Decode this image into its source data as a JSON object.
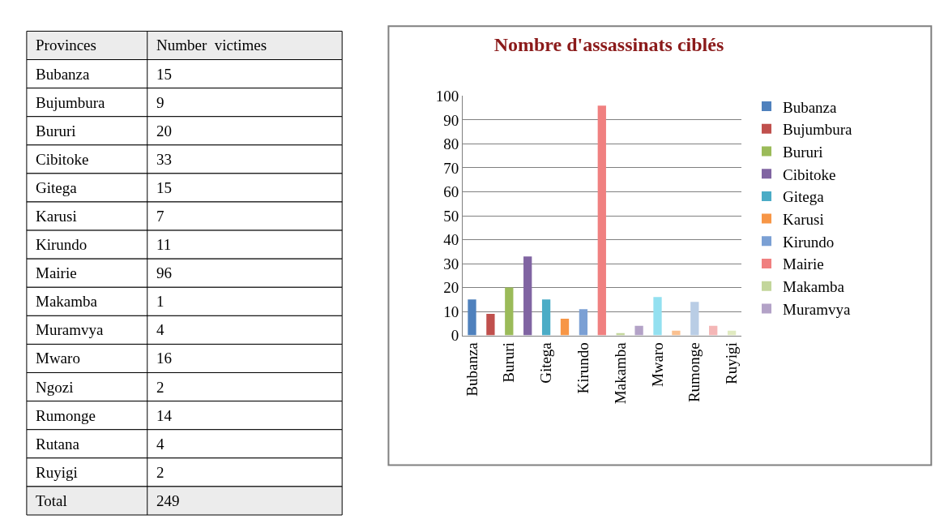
{
  "chart_data": [
    {
      "type": "other",
      "annotations": [
        "Provinces",
        "Number  victimes",
        "Bubanza",
        "15",
        "Bujumbura",
        "9",
        "Bururi",
        "20",
        "Cibitoke",
        "33",
        "Gitega",
        "15",
        "Karusi",
        "7",
        "Kirundo",
        "11",
        "Mairie",
        "96",
        "Makamba",
        "1",
        "Muramvya",
        "4",
        "Mwaro",
        "16",
        "Ngozi",
        "2",
        "Rumonge",
        "14",
        "Rutana",
        "4",
        "Ruyigi",
        "2",
        "Total",
        "249"
      ]
    },
    {
      "type": "bar",
      "title": "Nombre d'assassinats ciblés",
      "categories": [
        "Bubanza",
        null,
        "Bururi",
        null,
        "Gitega",
        null,
        "Kirundo",
        null,
        "Makamba",
        null,
        "Mwaro",
        null,
        "Rumonge",
        null,
        "Ruyigi"
      ],
      "series": [
        {
          "name": "Bubanza",
          "color": "#4f81bd",
          "values": [
            15,
            null,
            null,
            null,
            null,
            null,
            null,
            null,
            null,
            null,
            null,
            null,
            null,
            null,
            null
          ]
        },
        {
          "name": "Bujumbura",
          "color": "#c0504d",
          "values": [
            null,
            9,
            null,
            null,
            null,
            null,
            null,
            null,
            null,
            null,
            null,
            null,
            null,
            null,
            null
          ]
        },
        {
          "name": "Bururi",
          "color": "#9bbb59",
          "values": [
            null,
            null,
            20,
            null,
            null,
            null,
            null,
            null,
            null,
            null,
            null,
            null,
            null,
            null,
            null
          ]
        },
        {
          "name": "Cibitoke",
          "color": "#8064a2",
          "values": [
            null,
            null,
            null,
            33,
            null,
            null,
            null,
            null,
            null,
            null,
            null,
            null,
            null,
            null,
            null
          ]
        },
        {
          "name": "Gitega",
          "color": "#4bacc6",
          "values": [
            null,
            null,
            null,
            null,
            15,
            null,
            null,
            null,
            null,
            null,
            null,
            null,
            null,
            null,
            null
          ]
        },
        {
          "name": "Karusi",
          "color": "#f79646",
          "values": [
            null,
            null,
            null,
            null,
            null,
            7,
            null,
            null,
            null,
            null,
            null,
            null,
            null,
            null,
            null
          ]
        },
        {
          "name": "Kirundo",
          "color": "#7ba0d4",
          "values": [
            null,
            null,
            null,
            null,
            null,
            null,
            11,
            null,
            null,
            null,
            null,
            null,
            null,
            null,
            null
          ]
        },
        {
          "name": "Mairie",
          "color": "#f08080",
          "values": [
            null,
            null,
            null,
            null,
            null,
            null,
            null,
            96,
            null,
            null,
            null,
            null,
            null,
            null,
            null
          ]
        },
        {
          "name": "Makamba",
          "color": "#c3d69b",
          "values": [
            null,
            null,
            null,
            null,
            null,
            null,
            null,
            null,
            1,
            null,
            null,
            null,
            null,
            null,
            null
          ]
        },
        {
          "name": "Muramvya",
          "color": "#b3a2c7",
          "values": [
            null,
            null,
            null,
            null,
            null,
            null,
            null,
            null,
            null,
            4,
            null,
            null,
            null,
            null,
            null
          ]
        },
        {
          "color": "#93e0f0",
          "values": [
            null,
            null,
            null,
            null,
            null,
            null,
            null,
            null,
            null,
            null,
            16,
            null,
            null,
            null,
            null
          ]
        },
        {
          "color": "#fac090",
          "values": [
            null,
            null,
            null,
            null,
            null,
            null,
            null,
            null,
            null,
            null,
            null,
            2,
            null,
            null,
            null
          ]
        },
        {
          "color": "#b9cde5",
          "values": [
            null,
            null,
            null,
            null,
            null,
            null,
            null,
            null,
            null,
            null,
            null,
            null,
            14,
            null,
            null
          ]
        },
        {
          "color": "#f4b6b6",
          "values": [
            null,
            null,
            null,
            null,
            null,
            null,
            null,
            null,
            null,
            null,
            null,
            null,
            null,
            4,
            null
          ]
        },
        {
          "color": "#e0eac0",
          "values": [
            null,
            null,
            null,
            null,
            null,
            null,
            null,
            null,
            null,
            null,
            null,
            null,
            null,
            null,
            2
          ]
        }
      ],
      "ylim": [
        0,
        100
      ],
      "yticks": [
        0,
        10,
        20,
        30,
        40,
        50,
        60,
        70,
        80,
        90,
        100
      ],
      "grid": "y",
      "legend": "right"
    }
  ]
}
